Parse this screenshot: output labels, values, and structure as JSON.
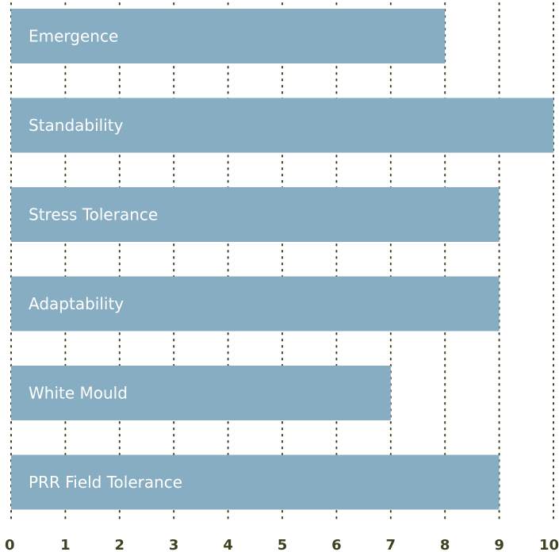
{
  "chart_data": {
    "type": "bar",
    "orientation": "horizontal",
    "categories": [
      "Emergence",
      "Standability",
      "Stress Tolerance",
      "Adaptability",
      "White Mould",
      "PRR Field Tolerance"
    ],
    "values": [
      8,
      10,
      9,
      9,
      7,
      9
    ],
    "xlim": [
      0,
      10
    ],
    "x_ticks": [
      "0",
      "1",
      "2",
      "3",
      "4",
      "5",
      "6",
      "7",
      "8",
      "9",
      "10"
    ],
    "grid": "vertical dotted",
    "legend": "none",
    "colors": {
      "bar": "#87adc3",
      "bar_text": "#ffffff",
      "axis_text": "#3d4220",
      "grid": "#3d4220"
    }
  }
}
